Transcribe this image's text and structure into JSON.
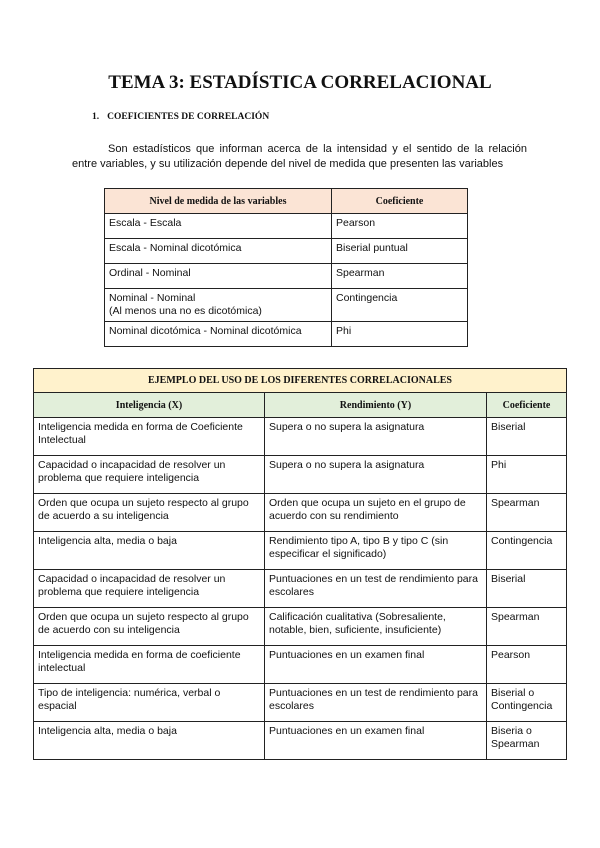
{
  "title": "TEMA 3: ESTADÍSTICA CORRELACIONAL",
  "section": {
    "number": "1.",
    "heading": "COEFICIENTES DE CORRELACIÓN"
  },
  "paragraph": "Son estadísticos que informan acerca de la intensidad y el sentido de la relación entre variables, y su utilización depende del nivel de medida que presenten las variables",
  "table1": {
    "headers": [
      "Nivel de medida de las variables",
      "Coeficiente"
    ],
    "rows": [
      [
        "Escala - Escala",
        "Pearson"
      ],
      [
        "Escala - Nominal dicotómica",
        "Biserial puntual"
      ],
      [
        "Ordinal - Nominal",
        "Spearman"
      ],
      [
        "Nominal - Nominal\n(Al menos una no es dicotómica)",
        "Contingencia"
      ],
      [
        "Nominal dicotómica - Nominal dicotómica",
        "Phi"
      ]
    ]
  },
  "table2": {
    "caption": "EJEMPLO DEL USO DE LOS DIFERENTES CORRELACIONALES",
    "headers": [
      "Inteligencia (X)",
      "Rendimiento (Y)",
      "Coeficiente"
    ],
    "rows": [
      [
        "Inteligencia medida en forma de Coeficiente Intelectual",
        "Supera o  no supera la asignatura",
        "Biserial"
      ],
      [
        "Capacidad o incapacidad de resolver un problema que requiere inteligencia",
        "Supera o  no supera la asignatura",
        "Phi"
      ],
      [
        "Orden que ocupa un sujeto respecto al grupo de acuerdo a su inteligencia",
        "Orden que ocupa un sujeto en el grupo de acuerdo con su rendimiento",
        "Spearman"
      ],
      [
        "Inteligencia alta, media o baja",
        "Rendimiento tipo A, tipo B y tipo C (sin especificar el significado)",
        "Contingencia"
      ],
      [
        "Capacidad o incapacidad de resolver un problema que requiere inteligencia",
        "Puntuaciones en un test de rendimiento para escolares",
        "Biserial"
      ],
      [
        "Orden que ocupa un sujeto respecto al grupo de acuerdo con su inteligencia",
        "Calificación cualitativa (Sobresaliente, notable, bien, suficiente, insuficiente)",
        "Spearman"
      ],
      [
        "Inteligencia medida en forma de coeficiente intelectual",
        "Puntuaciones en un examen final",
        "Pearson"
      ],
      [
        "Tipo de inteligencia: numérica, verbal o espacial",
        "Puntuaciones en un test de rendimiento para escolares",
        "Biserial o Contingencia"
      ],
      [
        "Inteligencia alta, media o baja",
        "Puntuaciones en un examen final",
        "Biseria o Spearman"
      ]
    ]
  },
  "colors": {
    "table1_header": "#fbe4d5",
    "table2_caption": "#fff2cc",
    "table2_header": "#e2efda"
  }
}
